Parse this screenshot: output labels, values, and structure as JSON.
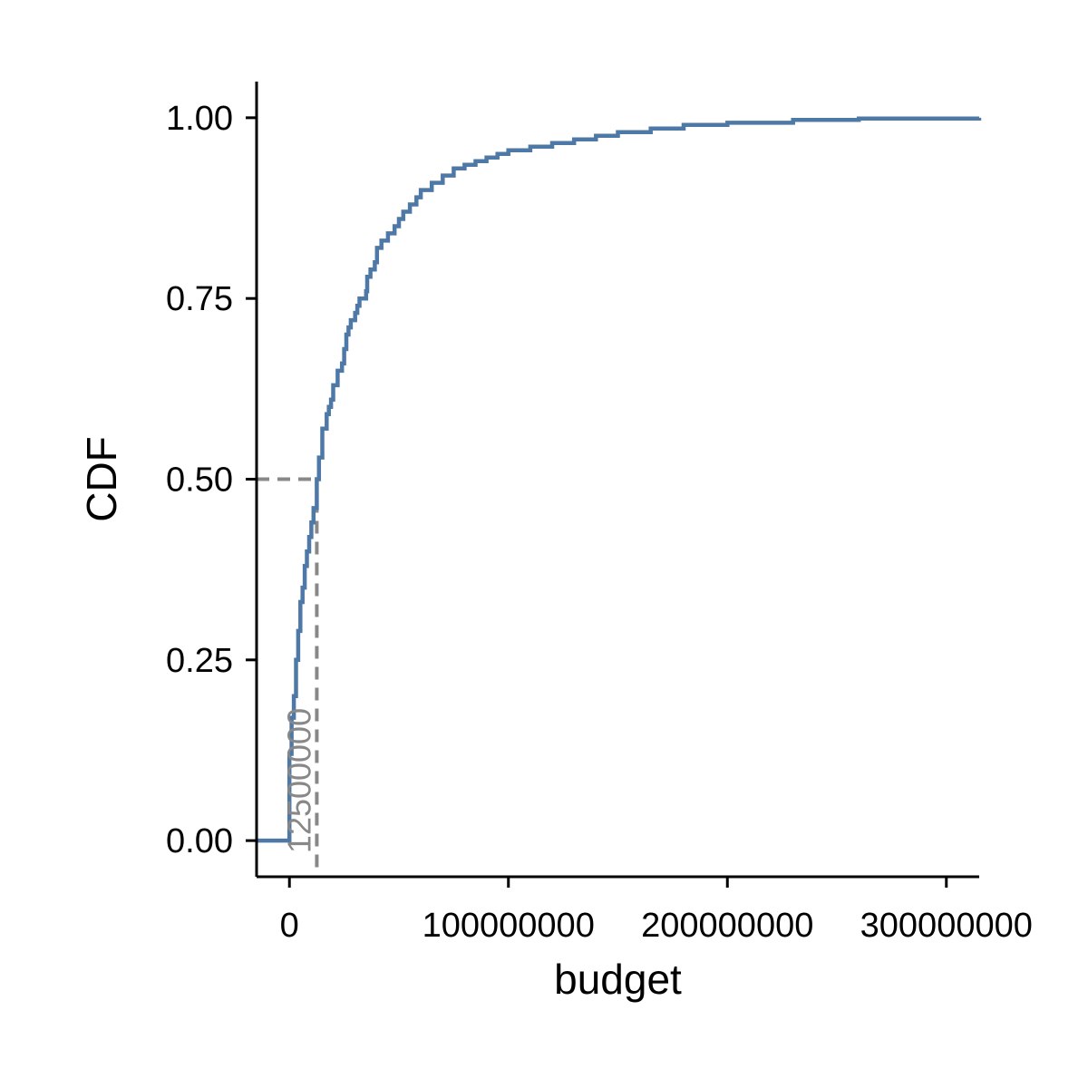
{
  "chart_data": {
    "type": "line",
    "title": "",
    "xlabel": "budget",
    "ylabel": "CDF",
    "xlim": [
      -15000000,
      315000000
    ],
    "ylim": [
      -0.05,
      1.05
    ],
    "x_ticks": [
      0,
      100000000,
      200000000,
      300000000
    ],
    "x_tick_labels": [
      "0",
      "100000000",
      "200000000",
      "300000000"
    ],
    "y_ticks": [
      0,
      0.25,
      0.5,
      0.75,
      1.0
    ],
    "y_tick_labels": [
      "0.00",
      "0.25",
      "0.50",
      "0.75",
      "1.00"
    ],
    "grid": false,
    "line_color": "#4e79a7",
    "reference_color": "#888888",
    "median": {
      "x": 12500000,
      "y": 0.5,
      "label": "12500000"
    },
    "series": [
      {
        "values": [
          [
            -15000000,
            0.0
          ],
          [
            0,
            0.0
          ],
          [
            0,
            0.12
          ],
          [
            1000000,
            0.17
          ],
          [
            2000000,
            0.2
          ],
          [
            3000000,
            0.25
          ],
          [
            4000000,
            0.29
          ],
          [
            5000000,
            0.33
          ],
          [
            6000000,
            0.35
          ],
          [
            7000000,
            0.38
          ],
          [
            8000000,
            0.4
          ],
          [
            9000000,
            0.42
          ],
          [
            10000000,
            0.44
          ],
          [
            11000000,
            0.46
          ],
          [
            12500000,
            0.5
          ],
          [
            13500000,
            0.53
          ],
          [
            15000000,
            0.57
          ],
          [
            17000000,
            0.59
          ],
          [
            18000000,
            0.6
          ],
          [
            19000000,
            0.61
          ],
          [
            20000000,
            0.63
          ],
          [
            22000000,
            0.65
          ],
          [
            24000000,
            0.66
          ],
          [
            25000000,
            0.68
          ],
          [
            26000000,
            0.7
          ],
          [
            27000000,
            0.71
          ],
          [
            28000000,
            0.72
          ],
          [
            30000000,
            0.73
          ],
          [
            31000000,
            0.74
          ],
          [
            32000000,
            0.75
          ],
          [
            35000000,
            0.76
          ],
          [
            35500000,
            0.78
          ],
          [
            37000000,
            0.79
          ],
          [
            39000000,
            0.8
          ],
          [
            40000000,
            0.82
          ],
          [
            42000000,
            0.83
          ],
          [
            45000000,
            0.84
          ],
          [
            48000000,
            0.85
          ],
          [
            50000000,
            0.86
          ],
          [
            52000000,
            0.87
          ],
          [
            55000000,
            0.88
          ],
          [
            58000000,
            0.89
          ],
          [
            60000000,
            0.9
          ],
          [
            65000000,
            0.91
          ],
          [
            70000000,
            0.92
          ],
          [
            75000000,
            0.93
          ],
          [
            80000000,
            0.935
          ],
          [
            85000000,
            0.94
          ],
          [
            90000000,
            0.945
          ],
          [
            95000000,
            0.95
          ],
          [
            100000000,
            0.955
          ],
          [
            110000000,
            0.96
          ],
          [
            120000000,
            0.965
          ],
          [
            130000000,
            0.97
          ],
          [
            140000000,
            0.975
          ],
          [
            150000000,
            0.98
          ],
          [
            165000000,
            0.985
          ],
          [
            180000000,
            0.99
          ],
          [
            200000000,
            0.993
          ],
          [
            230000000,
            0.997
          ],
          [
            260000000,
            0.999
          ],
          [
            315000000,
            1.0
          ]
        ]
      }
    ]
  }
}
